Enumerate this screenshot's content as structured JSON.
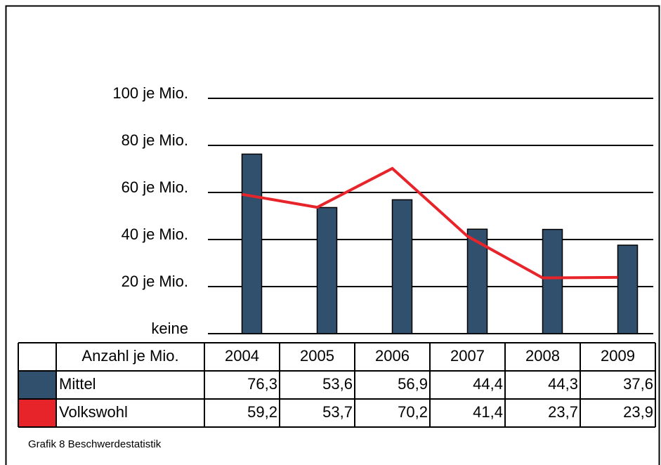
{
  "chart_data": {
    "type": "bar",
    "categories": [
      "2004",
      "2005",
      "2006",
      "2007",
      "2008",
      "2009"
    ],
    "table_header": "Anzahl je Mio.",
    "series": [
      {
        "name": "Mittel",
        "type": "bar",
        "color": "#31506e",
        "values": [
          76.3,
          53.6,
          56.9,
          44.4,
          44.3,
          37.6
        ],
        "value_labels": [
          "76,3",
          "53,6",
          "56,9",
          "44,4",
          "44,3",
          "37,6"
        ]
      },
      {
        "name": "Volkswohl",
        "type": "line",
        "color": "#e8242b",
        "values": [
          59.2,
          53.7,
          70.2,
          41.4,
          23.7,
          23.9
        ],
        "value_labels": [
          "59,2",
          "53,7",
          "70,2",
          "41,4",
          "23,7",
          "23,9"
        ]
      }
    ],
    "ylim": [
      0,
      100
    ],
    "yticks": [
      {
        "value": 0,
        "label": "keine"
      },
      {
        "value": 20,
        "label": "20 je Mio."
      },
      {
        "value": 40,
        "label": "40 je Mio."
      },
      {
        "value": 60,
        "label": "60 je Mio."
      },
      {
        "value": 80,
        "label": "80 je Mio."
      },
      {
        "value": 100,
        "label": "100 je Mio."
      }
    ],
    "grid": true,
    "caption": "Grafik 8 Beschwerdestatistik"
  }
}
